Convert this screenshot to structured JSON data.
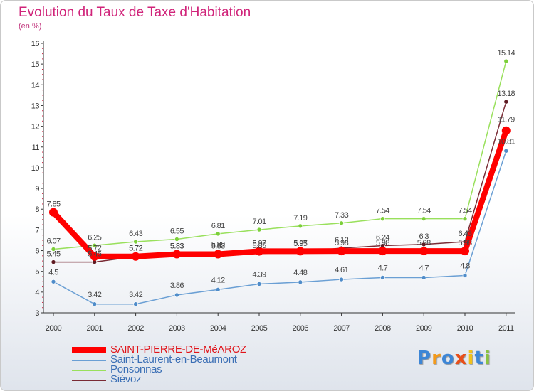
{
  "header": {
    "title": "Evolution du Taux de Taxe d'Habitation",
    "subtitle": "(en %)"
  },
  "chart_data": {
    "type": "line",
    "title": "Evolution du Taux de Taxe d'Habitation",
    "ylabel": "(en %)",
    "xlabel": "",
    "ylim": [
      3,
      16
    ],
    "yticks": [
      3,
      4,
      5,
      6,
      7,
      8,
      9,
      10,
      11,
      12,
      13,
      14,
      15,
      16
    ],
    "categories": [
      "2000",
      "2001",
      "2002",
      "2003",
      "2004",
      "2005",
      "2006",
      "2007",
      "2008",
      "2009",
      "2010",
      "2011"
    ],
    "grid": false,
    "series": [
      {
        "name": "SAINT-PIERRE-DE-MéAROZ",
        "color": "#ff0000",
        "values": [
          7.85,
          5.72,
          5.72,
          5.83,
          5.83,
          5.97,
          5.97,
          5.98,
          5.98,
          5.98,
          5.98,
          11.79
        ],
        "labels": [
          "7.85",
          "5.72",
          "5.72",
          "5.83",
          "5.83",
          "5.97",
          "5.97",
          "5.98",
          "5.98",
          "5.98",
          "5.98",
          "11.79"
        ]
      },
      {
        "name": "Saint-Laurent-en-Beaumont",
        "color": "#6a9fd4",
        "values": [
          4.5,
          3.42,
          3.42,
          3.86,
          4.12,
          4.39,
          4.48,
          4.61,
          4.7,
          4.7,
          4.8,
          10.81
        ],
        "labels": [
          "4.5",
          "3.42",
          "3.42",
          "3.86",
          "4.12",
          "4.39",
          "4.48",
          "4.61",
          "4.7",
          "4.7",
          "4.8",
          "10.81"
        ]
      },
      {
        "name": "Ponsonnas",
        "color": "#99e05c",
        "values": [
          6.07,
          6.25,
          6.43,
          6.55,
          6.81,
          7.01,
          7.19,
          7.33,
          7.54,
          7.54,
          7.54,
          15.14
        ],
        "labels": [
          "6.07",
          "6.25",
          "6.43",
          "6.55",
          "6.81",
          "7.01",
          "7.19",
          "7.33",
          "7.54",
          "7.54",
          "7.54",
          "15.14"
        ]
      },
      {
        "name": "Siévoz",
        "color": "#7a2b35",
        "values": [
          5.45,
          5.45,
          5.72,
          5.83,
          5.89,
          5.85,
          5.95,
          6.12,
          6.24,
          6.3,
          6.43,
          13.18
        ],
        "labels": [
          "5.45",
          "5.45",
          "5.72",
          "5.83",
          "5.89",
          "5.85",
          "5.95",
          "6.12",
          "6.24",
          "6.3",
          "6.43",
          "13.18"
        ]
      }
    ]
  },
  "legend": {
    "items": [
      {
        "label": "SAINT-PIERRE-DE-MéAROZ",
        "color": "#ff0000",
        "text_color": "#e0141a"
      },
      {
        "label": "Saint-Laurent-en-Beaumont",
        "color": "#6a9fd4",
        "text_color": "#3b6fb5"
      },
      {
        "label": "Ponsonnas",
        "color": "#99e05c",
        "text_color": "#3b6fb5"
      },
      {
        "label": "Siévoz",
        "color": "#7a2b35",
        "text_color": "#3b6fb5"
      }
    ]
  },
  "logo": {
    "text": "Proxiti",
    "colors": [
      "#3d86d6",
      "#f29a1c",
      "#3d86d6",
      "#e84f1a",
      "#f2c21c",
      "#3d86d6",
      "#8ac43f"
    ]
  }
}
